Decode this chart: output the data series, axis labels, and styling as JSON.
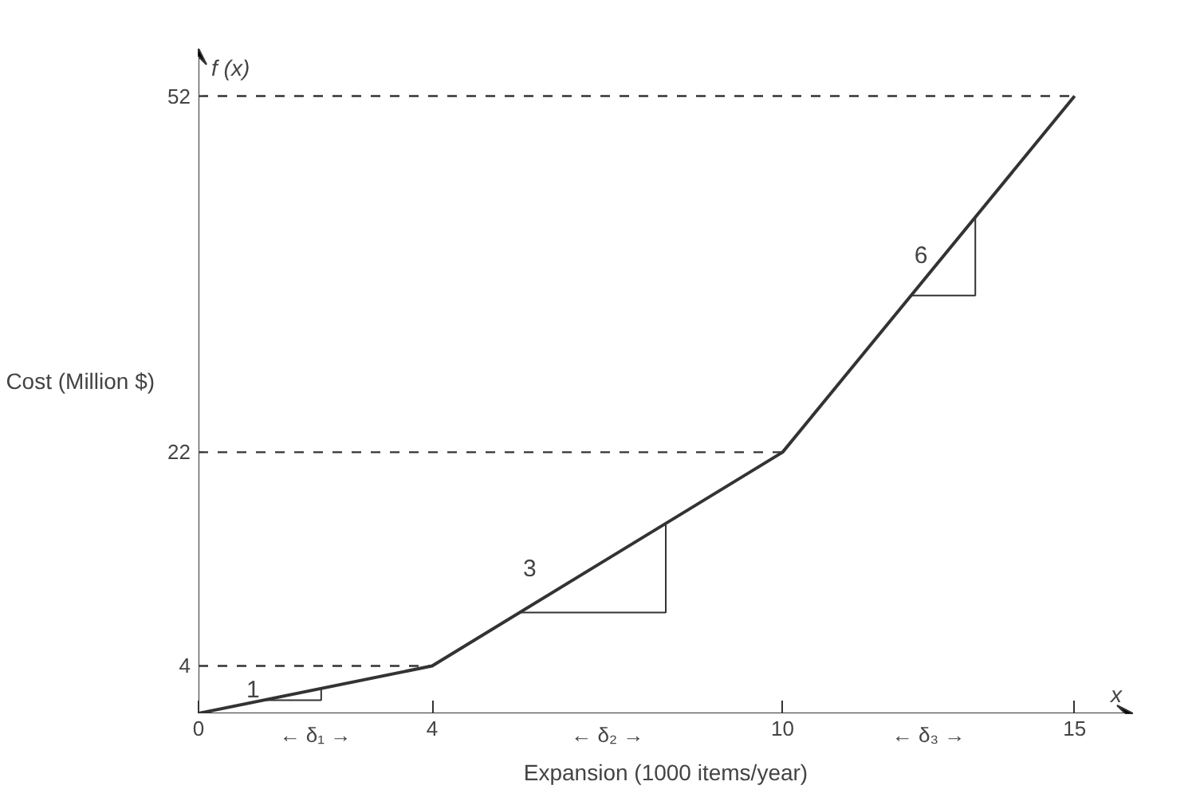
{
  "chart_data": {
    "type": "line",
    "xlabel": "Expansion (1000 items/year)",
    "ylabel": "Cost (Million $)",
    "x": [
      0,
      4,
      10,
      15
    ],
    "series": [
      {
        "color": "#333333",
        "values": [
          0,
          4,
          22,
          52
        ]
      }
    ],
    "xlim": [
      0,
      16
    ],
    "ylim": [
      0,
      56
    ],
    "xticks": [
      0,
      4,
      10,
      15
    ],
    "yticks": [
      4,
      22,
      52
    ],
    "ref_lines": [
      {
        "axis": "y",
        "value": 4,
        "line_style": "dashed"
      },
      {
        "axis": "y",
        "value": 22,
        "line_style": "dashed"
      },
      {
        "axis": "y",
        "value": 52,
        "line_style": "dashed"
      }
    ],
    "annotations": [
      "f (x)",
      "x",
      {
        "text": "1",
        "x": 1.1,
        "y": 1.1
      },
      {
        "text": "3",
        "x": 5.5,
        "y": 8.5
      },
      {
        "text": "6",
        "x": 12.2,
        "y": 35.2
      },
      "← δ₁ →",
      "← δ₂ →",
      "← δ₃ →"
    ],
    "grid": false,
    "marker": "none",
    "line_style": "solid"
  }
}
